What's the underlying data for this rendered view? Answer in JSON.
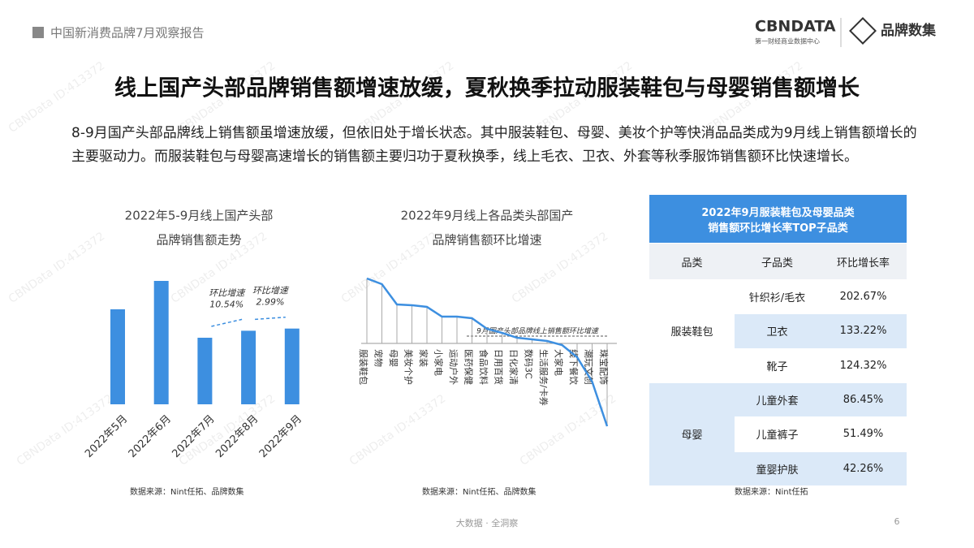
{
  "header": {
    "report": "中国新消费品牌7月观察报告",
    "logo": "CBNDATA",
    "logo_sub": "第一财经商业数据中心",
    "brand": "品牌数集"
  },
  "title": "线上国产头部品牌销售额增速放缓，夏秋换季拉动服装鞋包与母婴销售额增长",
  "body": "8-9月国产头部品牌线上销售额虽增速放缓，但依旧处于增长状态。其中服装鞋包、母婴、美妆个护等快消品品类成为9月线上销售额增长的主要驱动力。而服装鞋包与母婴高速增长的销售额主要归功于夏秋换季，线上毛衣、卫衣、外套等秋季服饰销售额环比快速增长。",
  "watermark": "CBNData ID:413372",
  "chart_data": [
    {
      "type": "bar",
      "title": [
        "2022年5-9月线上国产头部",
        "品牌销售额走势"
      ],
      "categories": [
        "2022年5月",
        "2022年6月",
        "2022年7月",
        "2022年8月",
        "2022年9月"
      ],
      "values": [
        117,
        152,
        82,
        90.6,
        93.3
      ],
      "color": "#3d8fe0",
      "ylim": [
        0,
        160
      ],
      "annotations": [
        {
          "label": "环比增速",
          "value": "10.54%"
        },
        {
          "label": "环比增速",
          "value": "2.99%"
        }
      ],
      "source": "数据来源：Nint任拓、品牌数集"
    },
    {
      "type": "line",
      "title": [
        "2022年9月线上各品类头部国产",
        "品牌销售额环比增速"
      ],
      "categories": [
        "服装鞋包",
        "宠物",
        "母婴",
        "美妆个护",
        "家装",
        "小家电",
        "运动户外",
        "医药保健",
        "食品饮料",
        "日用百货",
        "日化家清",
        "数码3C",
        "生活服务/卡券",
        "大家电",
        "线下餐饮",
        "潮玩文创",
        "珠宝配饰"
      ],
      "values": [
        71,
        64,
        39,
        38,
        36,
        24,
        24,
        22,
        9,
        4,
        -2,
        -4,
        -6,
        -11,
        -26,
        -56,
        -111
      ],
      "color": "#3d8fe0",
      "ylim": [
        -120,
        80
      ],
      "reference_line": {
        "value": 0,
        "label": "9月国产头部品牌线上销售额环比增速"
      },
      "source": "数据来源：Nint任拓、品牌数集"
    }
  ],
  "table": {
    "title": [
      "2022年9月服装鞋包及母婴品类",
      "销售额环比增长率TOP子品类"
    ],
    "header": [
      "品类",
      "子品类",
      "环比增长率"
    ],
    "groups": [
      {
        "name": "服装鞋包",
        "rows": [
          [
            "针织衫/毛衣",
            "202.67%"
          ],
          [
            "卫衣",
            "133.22%"
          ],
          [
            "靴子",
            "124.32%"
          ]
        ]
      },
      {
        "name": "母婴",
        "rows": [
          [
            "儿童外套",
            "86.45%"
          ],
          [
            "儿童裤子",
            "51.49%"
          ],
          [
            "童婴护肤",
            "42.26%"
          ]
        ]
      }
    ],
    "source": "数据来源：Nint任拓"
  },
  "footer": {
    "slogan": "大数据 · 全洞察",
    "page": "6"
  }
}
